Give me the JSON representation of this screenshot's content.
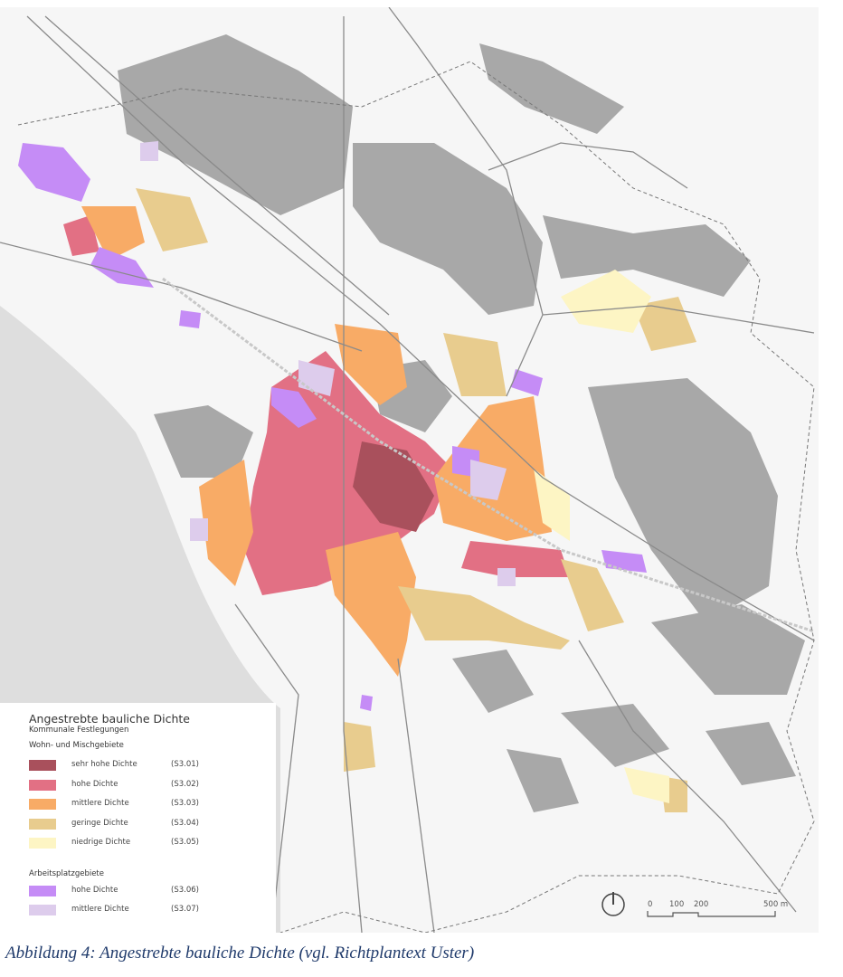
{
  "legend": {
    "title": "Angestrebte bauliche Dichte",
    "subtitle": "Kommunale Festlegungen",
    "group1": "Wohn- und Mischgebiete",
    "group2": "Arbeitsplatzgebiete",
    "items": [
      {
        "label": "sehr hohe Dichte",
        "code": "(S3.01)",
        "color": "#a9505c"
      },
      {
        "label": "hohe Dichte",
        "code": "(S3.02)",
        "color": "#e27084"
      },
      {
        "label": "mittlere Dichte",
        "code": "(S3.03)",
        "color": "#f8ab66"
      },
      {
        "label": "geringe Dichte",
        "code": "(S3.04)",
        "color": "#e8cc8e"
      },
      {
        "label": "niedrige Dichte",
        "code": "(S3.05)",
        "color": "#fdf5c4"
      },
      {
        "label": "hohe Dichte",
        "code": "(S3.06)",
        "color": "#c58cf6"
      },
      {
        "label": "mittlere Dichte",
        "code": "(S3.07)",
        "color": "#ddccec"
      }
    ]
  },
  "scalebar": {
    "ticks": [
      "0",
      "100",
      "200",
      "500 m"
    ]
  },
  "north_arrow": "north-arrow-icon",
  "caption": "Abbildung 4: Angestrebte bauliche Dichte (vgl. Richtplantext Uster)",
  "colors": {
    "forest": "#a8a8a8",
    "lake": "#dedede",
    "background": "#f6f6f6",
    "roads": "#8a8a8a"
  }
}
